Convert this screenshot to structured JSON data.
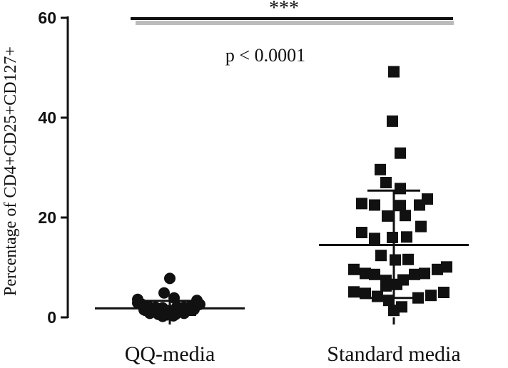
{
  "chart_data": {
    "type": "scatter",
    "ylabel": "Percentage of CD4+CD25+CD127+",
    "ylim": [
      0,
      60
    ],
    "yticks": [
      0,
      20,
      40,
      60
    ],
    "categories": [
      "QQ-media",
      "Standard media"
    ],
    "series": [
      {
        "name": "QQ-media",
        "marker": "circle",
        "mean": 1.8,
        "sd_upper": 3.3,
        "sd_lower": 0.5,
        "points": [
          {
            "dx": 0.0,
            "y": 7.8
          },
          {
            "dx": -0.08,
            "y": 4.9
          },
          {
            "dx": 0.06,
            "y": 3.9
          },
          {
            "dx": -0.45,
            "y": 3.6
          },
          {
            "dx": 0.38,
            "y": 3.4
          },
          {
            "dx": -0.4,
            "y": 2.7
          },
          {
            "dx": -0.3,
            "y": 2.2
          },
          {
            "dx": -0.2,
            "y": 2.0
          },
          {
            "dx": -0.1,
            "y": 1.9
          },
          {
            "dx": 0.1,
            "y": 2.1
          },
          {
            "dx": 0.2,
            "y": 2.0
          },
          {
            "dx": 0.3,
            "y": 2.3
          },
          {
            "dx": -0.36,
            "y": 1.5
          },
          {
            "dx": -0.24,
            "y": 1.3
          },
          {
            "dx": -0.12,
            "y": 1.2
          },
          {
            "dx": 0.0,
            "y": 1.4
          },
          {
            "dx": 0.12,
            "y": 1.3
          },
          {
            "dx": 0.24,
            "y": 1.4
          },
          {
            "dx": 0.34,
            "y": 1.6
          },
          {
            "dx": -0.28,
            "y": 0.8
          },
          {
            "dx": -0.16,
            "y": 0.6
          },
          {
            "dx": -0.04,
            "y": 0.5
          },
          {
            "dx": 0.08,
            "y": 0.6
          },
          {
            "dx": 0.2,
            "y": 0.8
          },
          {
            "dx": -0.1,
            "y": 0.2
          },
          {
            "dx": 0.05,
            "y": 0.3
          },
          {
            "dx": -0.45,
            "y": 2.9
          },
          {
            "dx": 0.42,
            "y": 2.6
          }
        ]
      },
      {
        "name": "Standard media",
        "marker": "square",
        "mean": 14.5,
        "sd_upper": 25.4,
        "sd_lower": 3.9,
        "points": [
          {
            "dx": 0.0,
            "y": 49.2
          },
          {
            "dx": -0.02,
            "y": 39.3
          },
          {
            "dx": 0.09,
            "y": 32.9
          },
          {
            "dx": -0.19,
            "y": 29.6
          },
          {
            "dx": -0.11,
            "y": 27.0
          },
          {
            "dx": 0.09,
            "y": 25.8
          },
          {
            "dx": 0.47,
            "y": 23.7
          },
          {
            "dx": -0.45,
            "y": 22.8
          },
          {
            "dx": -0.27,
            "y": 22.5
          },
          {
            "dx": 0.09,
            "y": 22.4
          },
          {
            "dx": 0.36,
            "y": 22.5
          },
          {
            "dx": -0.09,
            "y": 20.3
          },
          {
            "dx": 0.16,
            "y": 20.4
          },
          {
            "dx": 0.38,
            "y": 18.2
          },
          {
            "dx": -0.45,
            "y": 17.0
          },
          {
            "dx": -0.27,
            "y": 15.8
          },
          {
            "dx": -0.02,
            "y": 16.0
          },
          {
            "dx": 0.18,
            "y": 16.1
          },
          {
            "dx": -0.18,
            "y": 12.4
          },
          {
            "dx": 0.02,
            "y": 11.5
          },
          {
            "dx": 0.2,
            "y": 11.6
          },
          {
            "dx": -0.56,
            "y": 9.6
          },
          {
            "dx": -0.4,
            "y": 8.8
          },
          {
            "dx": -0.27,
            "y": 8.6
          },
          {
            "dx": -0.11,
            "y": 7.4
          },
          {
            "dx": 0.04,
            "y": 6.6
          },
          {
            "dx": 0.13,
            "y": 7.5
          },
          {
            "dx": 0.29,
            "y": 8.6
          },
          {
            "dx": 0.43,
            "y": 8.8
          },
          {
            "dx": 0.61,
            "y": 9.6
          },
          {
            "dx": 0.74,
            "y": 10.1
          },
          {
            "dx": -0.56,
            "y": 5.1
          },
          {
            "dx": -0.4,
            "y": 4.8
          },
          {
            "dx": -0.23,
            "y": 4.2
          },
          {
            "dx": -0.07,
            "y": 3.4
          },
          {
            "dx": -0.11,
            "y": 6.3
          },
          {
            "dx": 0.0,
            "y": 1.4
          },
          {
            "dx": 0.11,
            "y": 2.1
          },
          {
            "dx": 0.34,
            "y": 3.9
          },
          {
            "dx": 0.52,
            "y": 4.4
          },
          {
            "dx": 0.7,
            "y": 5.0
          }
        ]
      }
    ],
    "significance": {
      "label": "***",
      "pvalue_text": "p < 0.0001"
    },
    "grid": false,
    "legend": "none"
  }
}
